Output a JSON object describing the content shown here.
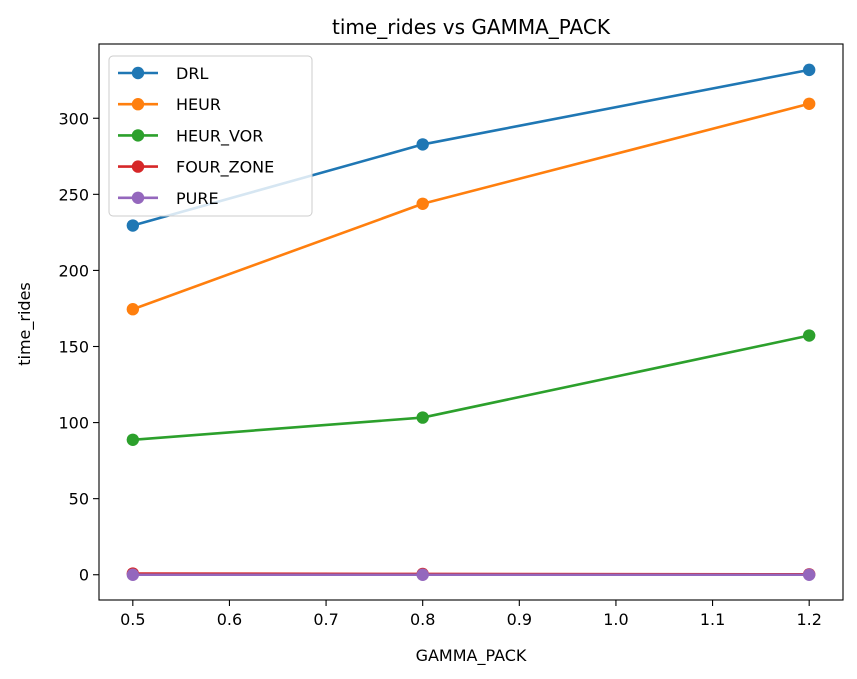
{
  "chart_data": {
    "type": "line",
    "title": "time_rides vs GAMMA_PACK",
    "xlabel": "GAMMA_PACK",
    "ylabel": "time_rides",
    "x": [
      0.5,
      0.8,
      1.2
    ],
    "xlim": [
      0.465,
      1.235
    ],
    "ylim": [
      -16.6,
      348.8
    ],
    "xticks": [
      "0.5",
      "0.6",
      "0.7",
      "0.8",
      "0.9",
      "1.0",
      "1.1",
      "1.2"
    ],
    "yticks": [
      "0",
      "50",
      "100",
      "150",
      "200",
      "250",
      "300"
    ],
    "grid": false,
    "legend_position": "top-left",
    "series": [
      {
        "name": "DRL",
        "color": "#1f77b4",
        "values": [
          229.5,
          282.8,
          331.8
        ]
      },
      {
        "name": "HEUR",
        "color": "#ff7f0e",
        "values": [
          174.5,
          243.8,
          309.5
        ]
      },
      {
        "name": "HEUR_VOR",
        "color": "#2ca02c",
        "values": [
          88.7,
          103.3,
          157.2
        ]
      },
      {
        "name": "FOUR_ZONE",
        "color": "#d62728",
        "values": [
          0.8,
          0.5,
          0.3
        ]
      },
      {
        "name": "PURE",
        "color": "#9467bd",
        "values": [
          0.0,
          0.0,
          0.0
        ]
      }
    ]
  }
}
